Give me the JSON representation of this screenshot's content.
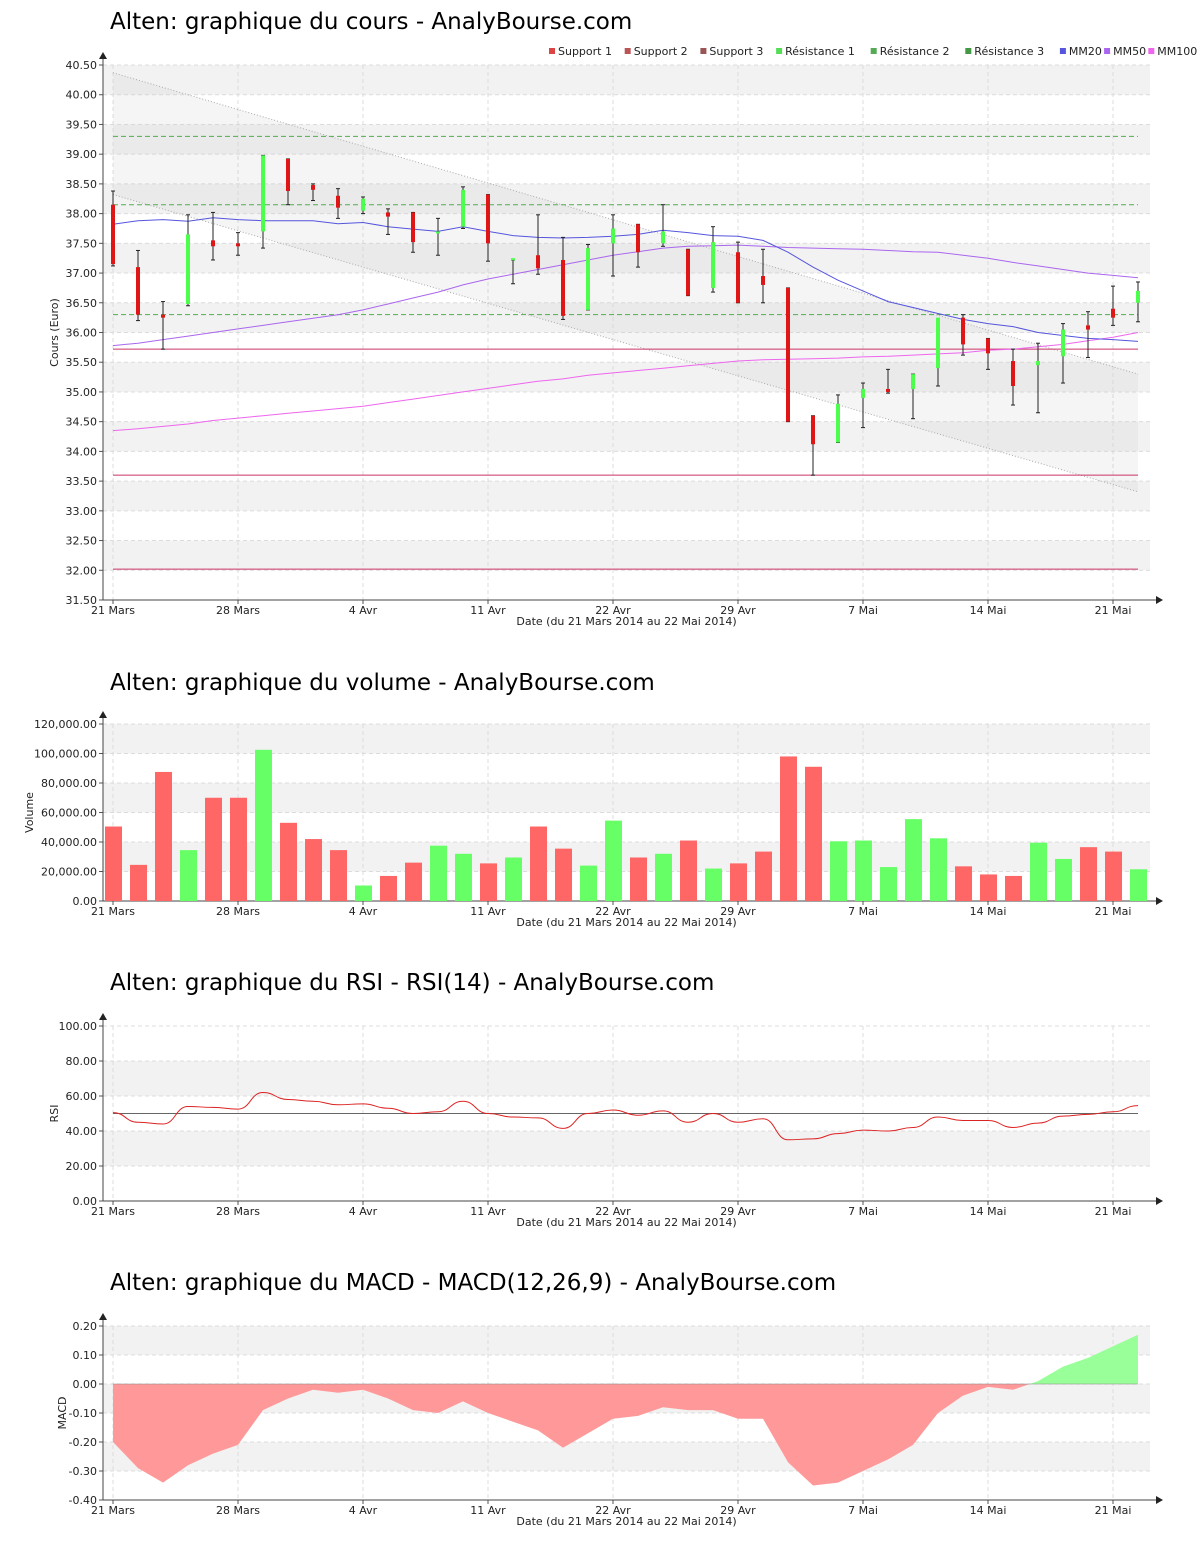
{
  "charts": [
    {
      "id": "price",
      "title": "Alten: graphique du cours - AnalyBourse.com",
      "xlabel": "Date (du 21 Mars 2014 au 22 Mai 2014)",
      "ylabel": "Cours (Euro)"
    },
    {
      "id": "volume",
      "title": "Alten: graphique du volume - AnalyBourse.com",
      "xlabel": "Date (du 21 Mars 2014 au 22 Mai 2014)",
      "ylabel": "Volume"
    },
    {
      "id": "rsi",
      "title": "Alten: graphique du RSI - RSI(14) - AnalyBourse.com",
      "xlabel": "Date (du 21 Mars 2014 au 22 Mai 2014)",
      "ylabel": "RSI"
    },
    {
      "id": "macd",
      "title": "Alten: graphique du MACD - MACD(12,26,9) - AnalyBourse.com",
      "xlabel": "Date (du 21 Mars 2014 au 22 Mai 2014)",
      "ylabel": "MACD"
    }
  ],
  "colors": {
    "up": "#4cff4c",
    "down": "#e01515",
    "volume_up": "#66ff66",
    "volume_down": "#ff6666",
    "macd_pos": "#99ff99",
    "macd_neg": "#ff9999",
    "mm20": "#5555dd",
    "mm50": "#aa66ee",
    "mm100": "#ee66ee",
    "support": "#cc3366",
    "resistance": "#55aa55",
    "rsi": "#dd2222"
  },
  "chart_data": [
    {
      "type": "candlestick",
      "title": "Alten: graphique du cours - AnalyBourse.com",
      "xlabel": "Date (du 21 Mars 2014 au 22 Mai 2014)",
      "ylabel": "Cours (Euro)",
      "ylim": [
        31.5,
        40.5
      ],
      "yticks": [
        "31.50",
        "32.00",
        "32.50",
        "33.00",
        "33.50",
        "34.00",
        "34.50",
        "35.00",
        "35.50",
        "36.00",
        "36.50",
        "37.00",
        "37.50",
        "38.00",
        "38.50",
        "39.00",
        "39.50",
        "40.00",
        "40.50"
      ],
      "xticks": [
        "21 Mars",
        "28 Mars",
        "4 Avr",
        "11 Avr",
        "22 Avr",
        "29 Avr",
        "7 Mai",
        "14 Mai",
        "21 Mai"
      ],
      "xtick_index": [
        0,
        5,
        10,
        15,
        20,
        25,
        30,
        35,
        40
      ],
      "legend": [
        "Support 1",
        "Support 2",
        "Support 3",
        "Résistance 1",
        "Résistance 2",
        "Résistance 3",
        "MM20",
        "MM50",
        "MM100"
      ],
      "legend_colors": [
        "#dd4444",
        "#bb5555",
        "#995555",
        "#55dd55",
        "#55aa55",
        "#449944",
        "#5555dd",
        "#aa66ee",
        "#ee66ee"
      ],
      "ohlc": [
        [
          38.15,
          38.38,
          37.12,
          37.15
        ],
        [
          37.1,
          37.38,
          36.2,
          36.3
        ],
        [
          36.3,
          36.52,
          35.72,
          36.25
        ],
        [
          36.48,
          37.98,
          36.45,
          37.65
        ],
        [
          37.55,
          38.02,
          37.22,
          37.45
        ],
        [
          37.5,
          37.68,
          37.3,
          37.45
        ],
        [
          37.7,
          38.98,
          37.42,
          38.98
        ],
        [
          38.92,
          38.92,
          38.15,
          38.38
        ],
        [
          38.48,
          38.5,
          38.22,
          38.4
        ],
        [
          38.3,
          38.42,
          37.92,
          38.1
        ],
        [
          38.05,
          38.28,
          38.0,
          38.25
        ],
        [
          38.02,
          38.08,
          37.65,
          37.95
        ],
        [
          38.02,
          38.02,
          37.35,
          37.52
        ],
        [
          37.7,
          37.92,
          37.3,
          37.7
        ],
        [
          37.78,
          38.45,
          37.75,
          38.4
        ],
        [
          38.32,
          38.32,
          37.2,
          37.5
        ],
        [
          37.22,
          37.22,
          36.82,
          37.25
        ],
        [
          37.3,
          37.98,
          36.98,
          37.08
        ],
        [
          37.22,
          37.6,
          36.22,
          36.28
        ],
        [
          36.38,
          37.48,
          36.38,
          37.42
        ],
        [
          37.5,
          37.98,
          36.95,
          37.75
        ],
        [
          37.82,
          37.82,
          37.1,
          37.35
        ],
        [
          37.5,
          38.15,
          37.45,
          37.7
        ],
        [
          37.4,
          37.4,
          36.62,
          36.62
        ],
        [
          36.75,
          37.78,
          36.68,
          37.52
        ],
        [
          37.35,
          37.52,
          36.5,
          36.5
        ],
        [
          36.95,
          37.4,
          36.5,
          36.8
        ],
        [
          36.75,
          36.75,
          34.5,
          34.5
        ],
        [
          34.6,
          34.6,
          33.6,
          34.12
        ],
        [
          34.15,
          34.95,
          34.15,
          34.8
        ],
        [
          34.9,
          35.15,
          34.4,
          35.05
        ],
        [
          35.05,
          35.38,
          34.98,
          35.0
        ],
        [
          35.05,
          35.3,
          34.55,
          35.3
        ],
        [
          35.4,
          36.22,
          35.1,
          36.25
        ],
        [
          36.25,
          36.3,
          35.62,
          35.8
        ],
        [
          35.9,
          35.9,
          35.38,
          35.65
        ],
        [
          35.52,
          35.72,
          34.78,
          35.1
        ],
        [
          35.45,
          35.82,
          34.65,
          35.52
        ],
        [
          35.6,
          36.15,
          35.15,
          36.05
        ],
        [
          36.12,
          36.35,
          35.58,
          36.05
        ],
        [
          36.4,
          36.78,
          36.12,
          36.25
        ],
        [
          36.5,
          36.85,
          36.18,
          36.7
        ]
      ],
      "mm20": [
        37.82,
        37.88,
        37.9,
        37.87,
        37.93,
        37.9,
        37.88,
        37.88,
        37.88,
        37.83,
        37.85,
        37.78,
        37.74,
        37.7,
        37.78,
        37.7,
        37.63,
        37.6,
        37.59,
        37.6,
        37.62,
        37.65,
        37.72,
        37.68,
        37.63,
        37.62,
        37.55,
        37.35,
        37.1,
        36.88,
        36.7,
        36.52,
        36.42,
        36.32,
        36.22,
        36.15,
        36.1,
        36.0,
        35.95,
        35.9,
        35.88,
        35.85
      ],
      "mm50": [
        35.78,
        35.82,
        35.88,
        35.94,
        36.0,
        36.06,
        36.12,
        36.18,
        36.24,
        36.3,
        36.38,
        36.48,
        36.58,
        36.68,
        36.8,
        36.9,
        36.98,
        37.06,
        37.14,
        37.22,
        37.3,
        37.36,
        37.42,
        37.45,
        37.46,
        37.47,
        37.45,
        37.43,
        37.42,
        37.41,
        37.4,
        37.38,
        37.36,
        37.35,
        37.3,
        37.25,
        37.18,
        37.12,
        37.06,
        37.0,
        36.96,
        36.92
      ],
      "mm100": [
        34.35,
        34.38,
        34.42,
        34.46,
        34.52,
        34.56,
        34.6,
        34.64,
        34.68,
        34.72,
        34.76,
        34.82,
        34.88,
        34.94,
        35.0,
        35.06,
        35.12,
        35.18,
        35.22,
        35.28,
        35.32,
        35.36,
        35.4,
        35.44,
        35.48,
        35.52,
        35.54,
        35.55,
        35.56,
        35.57,
        35.59,
        35.6,
        35.62,
        35.64,
        35.66,
        35.7,
        35.72,
        35.76,
        35.8,
        35.86,
        35.92,
        36.0
      ],
      "support_levels": [
        35.72,
        33.6,
        32.02
      ],
      "resistance_levels": [
        36.3,
        38.15,
        39.3
      ],
      "trend_channel": {
        "upper": [
          40.37,
          35.3
        ],
        "lower": [
          38.32,
          33.32
        ]
      }
    },
    {
      "type": "bar",
      "title": "Alten: graphique du volume - AnalyBourse.com",
      "xlabel": "Date (du 21 Mars 2014 au 22 Mai 2014)",
      "ylabel": "Volume",
      "ylim": [
        0,
        120000
      ],
      "yticks": [
        "0.00",
        "20,000.00",
        "40,000.00",
        "60,000.00",
        "80,000.00",
        "100,000.00",
        "120,000.00"
      ],
      "xticks": [
        "21 Mars",
        "28 Mars",
        "4 Avr",
        "11 Avr",
        "22 Avr",
        "29 Avr",
        "7 Mai",
        "14 Mai",
        "21 Mai"
      ],
      "values": [
        50500,
        24500,
        87500,
        34500,
        70000,
        70000,
        102500,
        53000,
        42000,
        34500,
        10500,
        17000,
        26000,
        37500,
        32000,
        25500,
        29500,
        50500,
        35500,
        24000,
        54500,
        29500,
        32000,
        41000,
        22000,
        25500,
        33500,
        98000,
        91000,
        40500,
        41000,
        23000,
        55500,
        42500,
        23500,
        18000,
        17000,
        39500,
        28500,
        36500,
        33500,
        21500
      ],
      "up": [
        false,
        false,
        false,
        true,
        false,
        false,
        true,
        false,
        false,
        false,
        true,
        false,
        false,
        true,
        true,
        false,
        true,
        false,
        false,
        true,
        true,
        false,
        true,
        false,
        true,
        false,
        false,
        false,
        false,
        true,
        true,
        true,
        true,
        true,
        false,
        false,
        false,
        true,
        true,
        false,
        false,
        true
      ]
    },
    {
      "type": "line",
      "title": "Alten: graphique du RSI - RSI(14) - AnalyBourse.com",
      "xlabel": "Date (du 21 Mars 2014 au 22 Mai 2014)",
      "ylabel": "RSI",
      "ylim": [
        0,
        100
      ],
      "yticks": [
        "0.00",
        "20.00",
        "40.00",
        "60.00",
        "80.00",
        "100.00"
      ],
      "xticks": [
        "21 Mars",
        "28 Mars",
        "4 Avr",
        "11 Avr",
        "22 Avr",
        "29 Avr",
        "7 Mai",
        "14 Mai",
        "21 Mai"
      ],
      "values": [
        50.5,
        45.0,
        44.0,
        54.0,
        53.5,
        52.5,
        62.0,
        58.0,
        57.0,
        55.0,
        55.5,
        53.0,
        50.0,
        51.0,
        57.0,
        50.0,
        48.0,
        47.5,
        41.5,
        50.0,
        52.0,
        49.0,
        51.5,
        45.0,
        50.0,
        45.0,
        47.0,
        35.0,
        35.5,
        38.5,
        40.5,
        40.0,
        42.0,
        48.0,
        46.0,
        46.0,
        42.0,
        44.5,
        48.5,
        49.5,
        51.0,
        54.5
      ],
      "reference": 50
    },
    {
      "type": "area",
      "title": "Alten: graphique du MACD - MACD(12,26,9) - AnalyBourse.com",
      "xlabel": "Date (du 21 Mars 2014 au 22 Mai 2014)",
      "ylabel": "MACD",
      "ylim": [
        -0.4,
        0.2
      ],
      "yticks": [
        "-0.40",
        "-0.30",
        "-0.20",
        "-0.10",
        "0.00",
        "0.10",
        "0.20"
      ],
      "xticks": [
        "21 Mars",
        "28 Mars",
        "4 Avr",
        "11 Avr",
        "22 Avr",
        "29 Avr",
        "7 Mai",
        "14 Mai",
        "21 Mai"
      ],
      "values": [
        -0.2,
        -0.29,
        -0.34,
        -0.28,
        -0.24,
        -0.21,
        -0.09,
        -0.05,
        -0.02,
        -0.03,
        -0.02,
        -0.05,
        -0.09,
        -0.1,
        -0.06,
        -0.1,
        -0.13,
        -0.16,
        -0.22,
        -0.17,
        -0.12,
        -0.11,
        -0.08,
        -0.09,
        -0.09,
        -0.12,
        -0.12,
        -0.27,
        -0.35,
        -0.34,
        -0.3,
        -0.26,
        -0.21,
        -0.1,
        -0.04,
        -0.01,
        -0.02,
        0.01,
        0.06,
        0.09,
        0.13,
        0.17
      ]
    }
  ]
}
